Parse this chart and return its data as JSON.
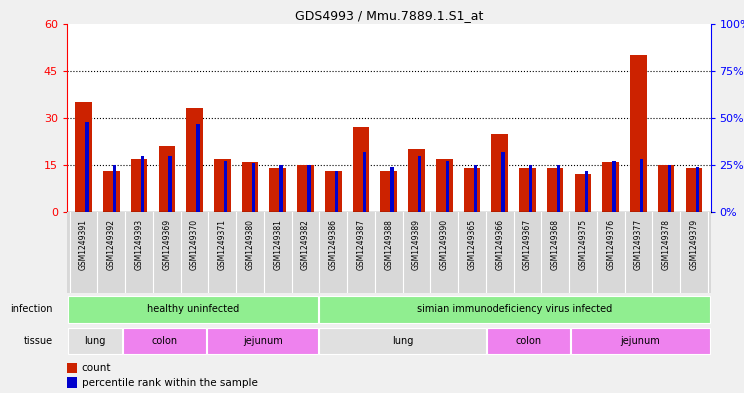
{
  "title": "GDS4993 / Mmu.7889.1.S1_at",
  "samples": [
    "GSM1249391",
    "GSM1249392",
    "GSM1249393",
    "GSM1249369",
    "GSM1249370",
    "GSM1249371",
    "GSM1249380",
    "GSM1249381",
    "GSM1249382",
    "GSM1249386",
    "GSM1249387",
    "GSM1249388",
    "GSM1249389",
    "GSM1249390",
    "GSM1249365",
    "GSM1249366",
    "GSM1249367",
    "GSM1249368",
    "GSM1249375",
    "GSM1249376",
    "GSM1249377",
    "GSM1249378",
    "GSM1249379"
  ],
  "counts": [
    35,
    13,
    17,
    21,
    33,
    17,
    16,
    14,
    15,
    13,
    27,
    13,
    20,
    17,
    14,
    25,
    14,
    14,
    12,
    16,
    50,
    15,
    14
  ],
  "percentiles": [
    48,
    25,
    30,
    30,
    47,
    27,
    26,
    25,
    25,
    22,
    32,
    24,
    30,
    27,
    25,
    32,
    25,
    25,
    22,
    27,
    28,
    25,
    24
  ],
  "ylim_left": [
    0,
    60
  ],
  "ylim_right": [
    0,
    100
  ],
  "yticks_left": [
    0,
    15,
    30,
    45,
    60
  ],
  "yticks_right": [
    0,
    25,
    50,
    75,
    100
  ],
  "bar_color": "#cc2200",
  "percentile_color": "#0000cc",
  "fig_bg_color": "#f0f0f0",
  "plot_bg_color": "#ffffff",
  "xticklabel_bg": "#d8d8d8",
  "infection_color": "#90ee90",
  "tissue_lung_color": "#e0e0e0",
  "tissue_colon_color": "#ee82ee",
  "tissue_jejunum_color": "#ee82ee",
  "tissue_groups": [
    {
      "label": "lung",
      "start": 0,
      "end": 2,
      "color": "#e0e0e0"
    },
    {
      "label": "colon",
      "start": 2,
      "end": 5,
      "color": "#ee82ee"
    },
    {
      "label": "jejunum",
      "start": 5,
      "end": 9,
      "color": "#ee82ee"
    },
    {
      "label": "lung",
      "start": 9,
      "end": 15,
      "color": "#e0e0e0"
    },
    {
      "label": "colon",
      "start": 15,
      "end": 18,
      "color": "#ee82ee"
    },
    {
      "label": "jejunum",
      "start": 18,
      "end": 23,
      "color": "#ee82ee"
    }
  ],
  "infection_groups": [
    {
      "label": "healthy uninfected",
      "start": 0,
      "end": 9,
      "color": "#90ee90"
    },
    {
      "label": "simian immunodeficiency virus infected",
      "start": 9,
      "end": 23,
      "color": "#90ee90"
    }
  ]
}
